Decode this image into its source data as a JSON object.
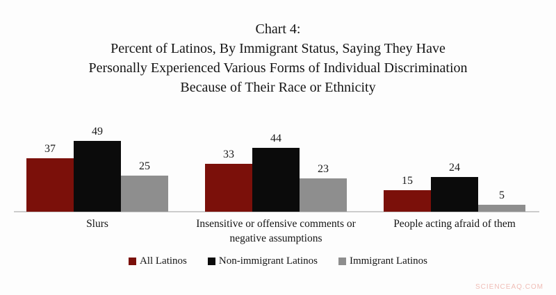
{
  "title_lines": [
    "Chart 4:",
    "Percent of Latinos, By Immigrant Status, Saying They Have",
    "Personally Experienced Various Forms of Individual Discrimination",
    "Because of Their Race or Ethnicity"
  ],
  "chart_data": {
    "type": "bar",
    "categories": [
      "Slurs",
      "Insensitive or offensive comments or negative assumptions",
      "People acting afraid of them"
    ],
    "series": [
      {
        "name": "All Latinos",
        "color": "#7b100a",
        "values": [
          37,
          33,
          15
        ]
      },
      {
        "name": "Non-immigrant Latinos",
        "color": "#0b0b0b",
        "values": [
          49,
          44,
          24
        ]
      },
      {
        "name": "Immigrant Latinos",
        "color": "#8e8e8e",
        "values": [
          25,
          23,
          5
        ]
      }
    ],
    "value_labels_shown": true,
    "ylim": [
      0,
      52
    ],
    "grid": false,
    "legend_position": "bottom",
    "axis_line_color": "#cccccc"
  },
  "watermark": "SCIENCEAQ.COM"
}
